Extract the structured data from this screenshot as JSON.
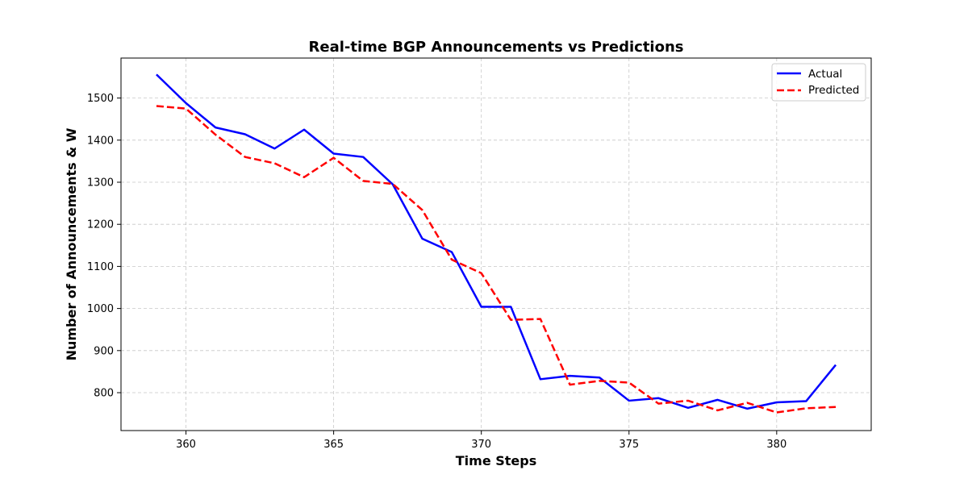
{
  "chart_data": {
    "type": "line",
    "title": "Real-time BGP Announcements vs Predictions",
    "xlabel": "Time Steps",
    "ylabel": "Number of Announcements & W",
    "xlim": [
      357.8,
      383.2
    ],
    "ylim": [
      710,
      1595
    ],
    "xticks": [
      360,
      365,
      370,
      375,
      380
    ],
    "yticks": [
      800,
      900,
      1000,
      1100,
      1200,
      1300,
      1400,
      1500
    ],
    "grid": true,
    "legend_position": "top-right",
    "x": [
      359,
      360,
      361,
      362,
      363,
      364,
      365,
      366,
      367,
      368,
      369,
      370,
      371,
      372,
      373,
      374,
      375,
      376,
      377,
      378,
      379,
      380,
      381,
      382
    ],
    "series": [
      {
        "name": "Actual",
        "color": "#0000ff",
        "style": "solid",
        "values": [
          1556,
          1488,
          1430,
          1414,
          1380,
          1425,
          1368,
          1360,
          1295,
          1166,
          1134,
          1004,
          1004,
          832,
          840,
          836,
          781,
          787,
          764,
          783,
          762,
          777,
          780,
          866
        ]
      },
      {
        "name": "Predicted",
        "color": "#ff0000",
        "style": "dashed",
        "values": [
          1481,
          1475,
          1413,
          1360,
          1345,
          1312,
          1358,
          1303,
          1296,
          1234,
          1116,
          1084,
          973,
          975,
          819,
          828,
          824,
          774,
          781,
          758,
          776,
          753,
          763,
          766
        ]
      }
    ]
  }
}
